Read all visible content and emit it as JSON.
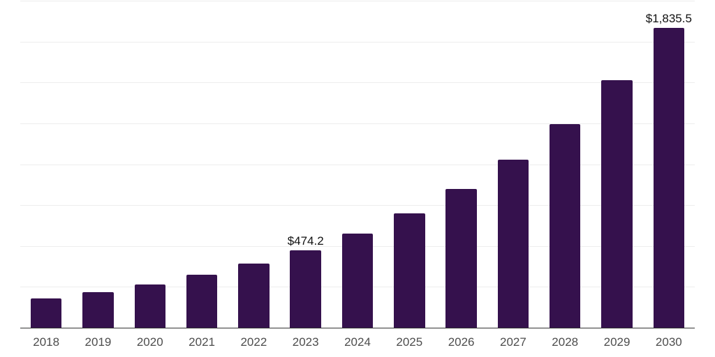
{
  "chart_data": {
    "type": "bar",
    "title": "",
    "xlabel": "",
    "ylabel": "",
    "categories": [
      "2018",
      "2019",
      "2020",
      "2021",
      "2022",
      "2023",
      "2024",
      "2025",
      "2026",
      "2027",
      "2028",
      "2029",
      "2030"
    ],
    "values": [
      180.4,
      218.9,
      265.5,
      322.1,
      390.8,
      474.2,
      575.3,
      698.0,
      846.9,
      1027.5,
      1246.6,
      1512.5,
      1835.5
    ],
    "value_labels": {
      "2023": "$474.2",
      "2030": "$1,835.5"
    },
    "ylim": [
      0,
      2000
    ],
    "grid_step": 250,
    "grid": "horizontal",
    "y_tick_labels_visible": false,
    "legend": "none",
    "colors": {
      "bar": "#35114d",
      "gridline": "#ededed",
      "axis_line": "#333333",
      "x_tick_label": "#4d4d4d",
      "value_label": "#111111",
      "background": "#ffffff"
    }
  }
}
